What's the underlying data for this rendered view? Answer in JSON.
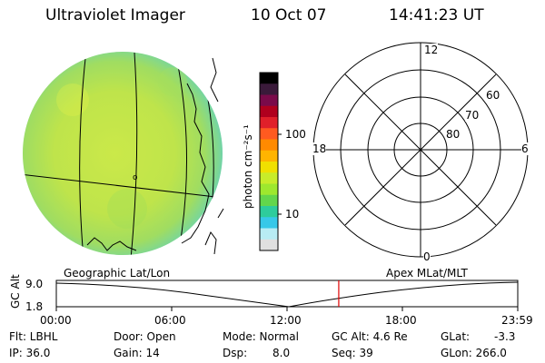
{
  "header": {
    "instrument": "Ultraviolet Imager",
    "date": "10 Oct 07",
    "time": "14:41:23 UT"
  },
  "color_scale": {
    "unit_label": "photon cm⁻²s⁻¹",
    "ticks": [
      "100",
      "10"
    ],
    "colors": [
      "#000000",
      "#3a1a3a",
      "#7a0a4a",
      "#b0001e",
      "#e0202a",
      "#ff5a20",
      "#ff8a00",
      "#ffb400",
      "#f0e000",
      "#c8ec2a",
      "#9ee82e",
      "#63d64c",
      "#2ecc9c",
      "#37c8e8",
      "#b8ecf4",
      "#e0e0e0"
    ]
  },
  "polar_plot": {
    "mlt_labels": [
      "12",
      "18",
      "6",
      "0"
    ],
    "lat_labels": [
      "60",
      "70",
      "80"
    ]
  },
  "maps": {
    "left_label": "Geographic Lat/Lon",
    "right_label": "Apex MLat/MLT"
  },
  "timeline": {
    "y_label": "GC Alt",
    "y_ticks": [
      "9.0",
      "1.8"
    ],
    "x_ticks": [
      "00:00",
      "06:00",
      "12:00",
      "18:00",
      "23:59"
    ],
    "current_time_hours": 14.69
  },
  "info": {
    "filter": "Flt: LBHL",
    "ip": "IP: 36.0",
    "door": "Door: Open",
    "gain": "Gain: 14",
    "mode": "Mode: Normal",
    "dsp_label": "Dsp:",
    "dsp_value": "8.0",
    "gc_alt": "GC Alt: 4.6 Re",
    "seq": "Seq: 39",
    "glat_label": "GLat:",
    "glat_value": "-3.3",
    "glon": "GLon: 266.0"
  }
}
